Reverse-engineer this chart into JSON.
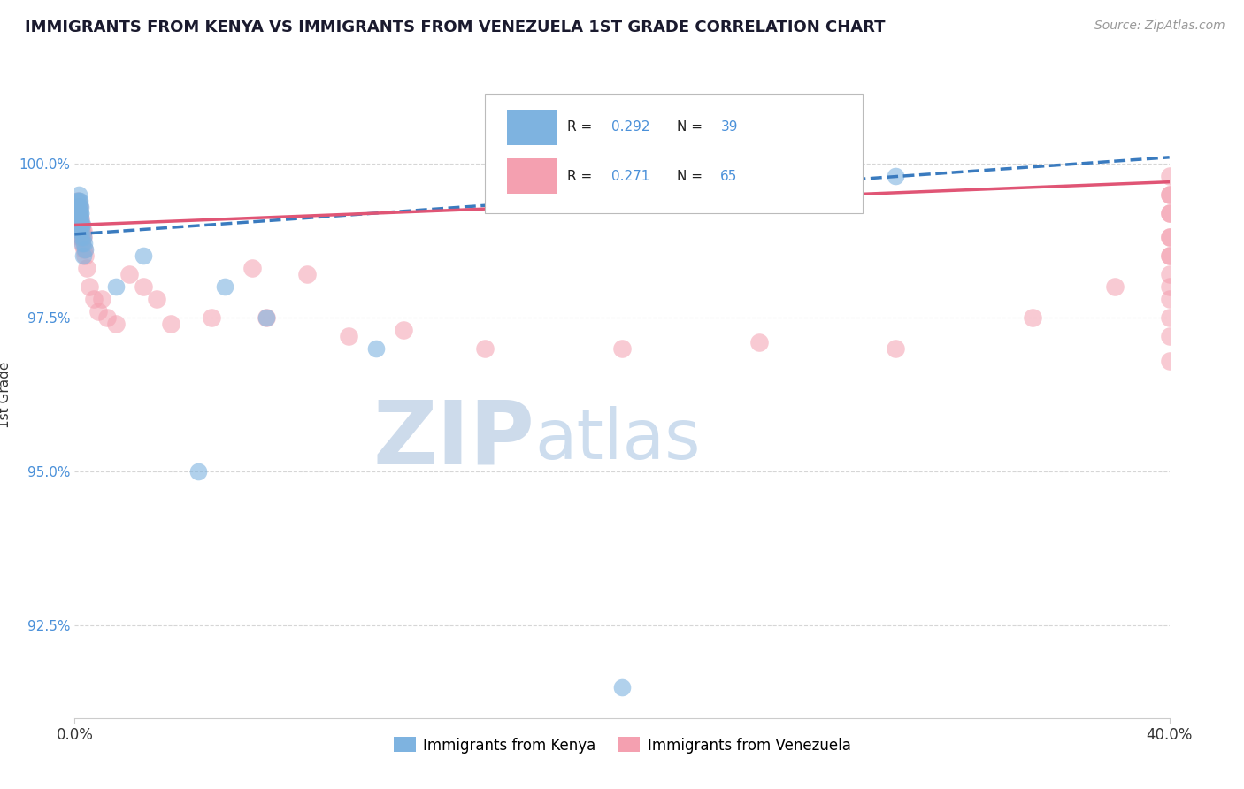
{
  "title": "IMMIGRANTS FROM KENYA VS IMMIGRANTS FROM VENEZUELA 1ST GRADE CORRELATION CHART",
  "source_text": "Source: ZipAtlas.com",
  "ylabel": "1st Grade",
  "xlim": [
    0.0,
    40.0
  ],
  "ylim": [
    91.0,
    101.5
  ],
  "yticks": [
    92.5,
    95.0,
    97.5,
    100.0
  ],
  "ytick_labels": [
    "92.5%",
    "95.0%",
    "97.5%",
    "100.0%"
  ],
  "xtick_labels": [
    "0.0%",
    "40.0%"
  ],
  "legend_r_kenya": "R = 0.292",
  "legend_n_kenya": "N = 39",
  "legend_r_venezuela": "R = 0.271",
  "legend_n_venezuela": "N = 65",
  "legend_label_kenya": "Immigrants from Kenya",
  "legend_label_venezuela": "Immigrants from Venezuela",
  "kenya_color": "#7eb3e0",
  "venezuela_color": "#f4a0b0",
  "kenya_line_color": "#3a7bbf",
  "venezuela_line_color": "#e05575",
  "watermark_zip": "ZIP",
  "watermark_atlas": "atlas",
  "watermark_color_zip": "#c5d5e8",
  "watermark_color_atlas": "#b8cfe8",
  "kenya_x": [
    0.05,
    0.08,
    0.1,
    0.1,
    0.12,
    0.13,
    0.14,
    0.14,
    0.15,
    0.15,
    0.16,
    0.16,
    0.17,
    0.17,
    0.18,
    0.18,
    0.19,
    0.2,
    0.21,
    0.22,
    0.22,
    0.23,
    0.25,
    0.25,
    0.26,
    0.27,
    0.28,
    0.3,
    0.32,
    0.35,
    0.38,
    1.5,
    2.5,
    4.5,
    5.5,
    7.0,
    11.0,
    30.0,
    20.0
  ],
  "kenya_y": [
    99.1,
    99.3,
    99.2,
    99.4,
    99.0,
    99.3,
    99.1,
    99.5,
    99.0,
    99.4,
    99.1,
    99.2,
    99.0,
    99.3,
    99.1,
    99.4,
    98.9,
    99.2,
    99.3,
    99.1,
    99.0,
    99.2,
    99.0,
    98.8,
    98.9,
    98.7,
    99.0,
    98.8,
    98.5,
    98.7,
    98.6,
    98.0,
    98.5,
    95.0,
    98.0,
    97.5,
    97.0,
    99.8,
    91.5
  ],
  "venezuela_x": [
    0.05,
    0.07,
    0.09,
    0.1,
    0.11,
    0.12,
    0.13,
    0.14,
    0.15,
    0.16,
    0.17,
    0.18,
    0.18,
    0.19,
    0.2,
    0.21,
    0.22,
    0.23,
    0.24,
    0.25,
    0.26,
    0.27,
    0.28,
    0.3,
    0.32,
    0.35,
    0.38,
    0.45,
    0.55,
    0.7,
    0.85,
    1.0,
    1.2,
    1.5,
    2.0,
    2.5,
    3.0,
    3.5,
    5.0,
    6.5,
    7.0,
    8.5,
    10.0,
    12.0,
    15.0,
    20.0,
    25.0,
    30.0,
    35.0,
    38.0,
    40.0,
    40.0,
    40.0,
    40.0,
    40.0,
    40.0,
    40.0,
    40.0,
    40.0,
    40.0,
    40.0,
    40.0,
    40.0,
    40.0,
    40.0
  ],
  "venezuela_y": [
    99.3,
    99.1,
    99.0,
    99.2,
    99.3,
    99.0,
    99.4,
    99.1,
    99.2,
    98.9,
    99.0,
    99.1,
    99.3,
    98.8,
    99.0,
    98.9,
    99.1,
    98.8,
    99.0,
    98.9,
    98.7,
    98.9,
    98.8,
    98.9,
    98.8,
    98.6,
    98.5,
    98.3,
    98.0,
    97.8,
    97.6,
    97.8,
    97.5,
    97.4,
    98.2,
    98.0,
    97.8,
    97.4,
    97.5,
    98.3,
    97.5,
    98.2,
    97.2,
    97.3,
    97.0,
    97.0,
    97.1,
    97.0,
    97.5,
    98.0,
    99.5,
    99.2,
    98.8,
    98.5,
    98.2,
    98.0,
    97.8,
    97.5,
    97.2,
    96.8,
    99.8,
    99.5,
    99.2,
    98.8,
    98.5
  ],
  "kenya_trendline_x0": 0.0,
  "kenya_trendline_x1": 40.0,
  "kenya_trendline_y0": 98.85,
  "kenya_trendline_y1": 100.1,
  "venezuela_trendline_x0": 0.0,
  "venezuela_trendline_x1": 40.0,
  "venezuela_trendline_y0": 99.0,
  "venezuela_trendline_y1": 99.7
}
